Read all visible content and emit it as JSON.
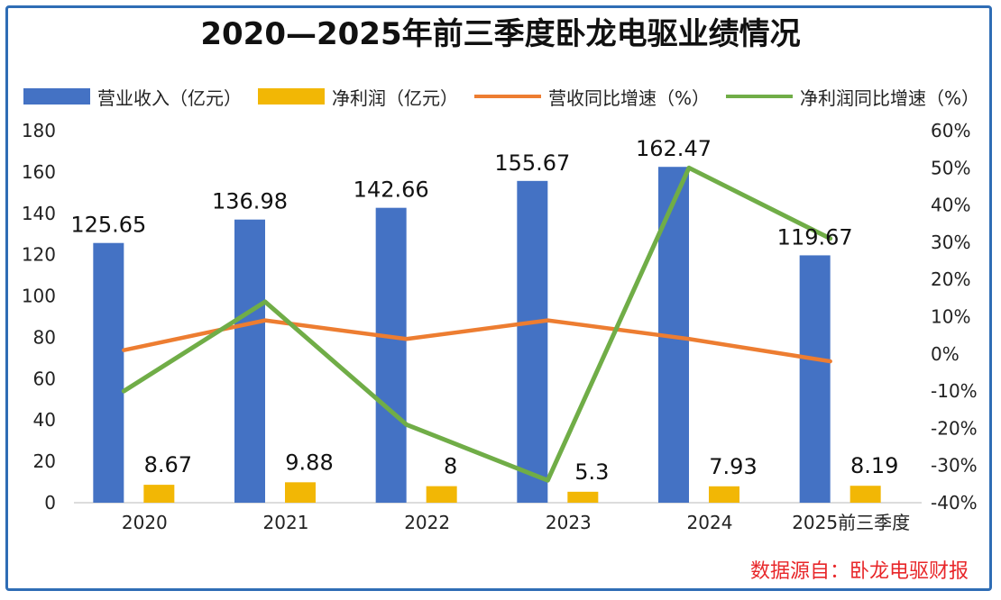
{
  "title": "2020—2025年前三季度卧龙电驱业绩情况",
  "source": "数据源自：卧龙电驱财报",
  "colors": {
    "revenue": "#4472c4",
    "profit": "#f2b705",
    "revenue_growth": "#ed7d31",
    "profit_growth": "#70ad47"
  },
  "legend": [
    {
      "label": "营业收入（亿元）",
      "kind": "box",
      "color": "#4472c4"
    },
    {
      "label": "净利润（亿元）",
      "kind": "box",
      "color": "#f2b705"
    },
    {
      "label": "营收同比增速（%）",
      "kind": "line",
      "color": "#ed7d31"
    },
    {
      "label": "净利润同比增速（%）",
      "kind": "line",
      "color": "#70ad47"
    }
  ],
  "chart_data": {
    "type": "bar",
    "title": "2020—2025年前三季度卧龙电驱业绩情况",
    "categories": [
      "2020",
      "2021",
      "2022",
      "2023",
      "2024",
      "2025前三季度"
    ],
    "series": [
      {
        "name": "营业收入（亿元）",
        "type": "bar",
        "axis": "left",
        "values": [
          125.65,
          136.98,
          142.66,
          155.67,
          162.47,
          119.67
        ],
        "labels": [
          "125.65",
          "136.98",
          "142.66",
          "155.67",
          "162.47",
          "119.67"
        ]
      },
      {
        "name": "净利润（亿元）",
        "type": "bar",
        "axis": "left",
        "values": [
          8.67,
          9.88,
          8,
          5.3,
          7.93,
          8.19
        ],
        "labels": [
          "8.67",
          "9.88",
          "8",
          "5.3",
          "7.93",
          "8.19"
        ]
      },
      {
        "name": "营收同比增速（%）",
        "type": "line",
        "axis": "right",
        "values": [
          1,
          9,
          4,
          9,
          4,
          -2
        ]
      },
      {
        "name": "净利润同比增速（%）",
        "type": "line",
        "axis": "right",
        "values": [
          -10,
          14,
          -19,
          -34,
          50,
          31
        ]
      }
    ],
    "y_left": {
      "min": 0,
      "max": 180,
      "ticks": [
        "0",
        "20",
        "40",
        "60",
        "80",
        "100",
        "120",
        "140",
        "160",
        "180"
      ]
    },
    "y_right": {
      "min": -40,
      "max": 60,
      "ticks": [
        "-40%",
        "-30%",
        "-20%",
        "-10%",
        "0%",
        "10%",
        "20%",
        "30%",
        "40%",
        "50%",
        "60%"
      ]
    },
    "grid": false,
    "legend_position": "top"
  }
}
